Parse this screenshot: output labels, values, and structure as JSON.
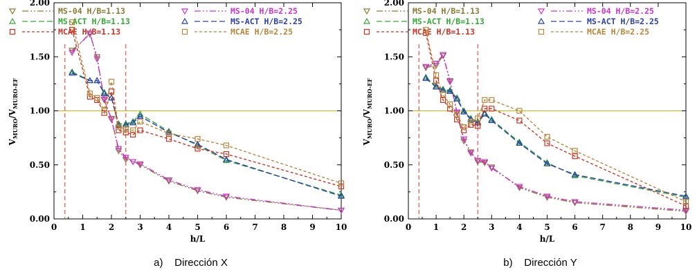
{
  "colors": {
    "ms04_113": "#8a7a33",
    "msact_113": "#33aa33",
    "mcae_113": "#cc3322",
    "ms04_225": "#cc33cc",
    "msact_225": "#2a3fb0",
    "mcae_225": "#b8863a",
    "ref": "#d4b000",
    "vline": "#e0443a"
  },
  "legend": [
    {
      "key": "ms04_113",
      "name": "MS-04",
      "hb": "H/B=1.13",
      "marker": "tri-down",
      "dash": "dashdot"
    },
    {
      "key": "msact_113",
      "name": "MS-ACT",
      "hb": "H/B=1.13",
      "marker": "tri-up",
      "dash": "dash"
    },
    {
      "key": "mcae_113",
      "name": "MCAE",
      "hb": "H/B=1.13",
      "marker": "square",
      "dash": "short"
    },
    {
      "key": "ms04_225",
      "name": "MS-04",
      "hb": "H/B=2.25",
      "marker": "tri-down",
      "dash": "dashdot"
    },
    {
      "key": "msact_225",
      "name": "MS-ACT",
      "hb": "H/B=2.25",
      "marker": "tri-up",
      "dash": "dash"
    },
    {
      "key": "mcae_225",
      "name": "MCAE",
      "hb": "H/B=2.25",
      "marker": "square",
      "dash": "short"
    }
  ],
  "chart_data": [
    {
      "type": "line",
      "caption": "a)    Dirección X",
      "xlabel": "h/L",
      "ylabel": "V",
      "ylabel_sub": "MURO",
      "ylabel_slash": "/V",
      "ylabel_sub2": "MURO-EF",
      "xlim": [
        0,
        10
      ],
      "ylim": [
        0,
        2
      ],
      "xticks": [
        "0",
        "1",
        "2",
        "3",
        "4",
        "5",
        "6",
        "7",
        "8",
        "9",
        "10"
      ],
      "yticks": [
        "0.00",
        "0.50",
        "1.00",
        "1.50",
        "2.00"
      ],
      "ref_y": 1.0,
      "vlines": [
        0.38,
        2.5
      ],
      "x": [
        0.63,
        1.25,
        1.5,
        1.75,
        2.0,
        2.25,
        2.5,
        2.75,
        3.0,
        4.0,
        5.0,
        6.0,
        10.0
      ],
      "series": [
        {
          "key": "ms04_113",
          "values": [
            1.56,
            1.71,
            1.5,
            1.1,
            0.93,
            0.63,
            0.55,
            0.53,
            0.5,
            0.35,
            0.26,
            0.2,
            0.08
          ]
        },
        {
          "key": "ms04_225",
          "values": [
            1.54,
            1.72,
            1.48,
            1.11,
            0.92,
            0.65,
            0.57,
            0.53,
            0.51,
            0.36,
            0.27,
            0.21,
            0.08
          ]
        },
        {
          "key": "msact_113",
          "values": [
            1.36,
            1.28,
            1.28,
            1.17,
            1.12,
            0.88,
            0.88,
            0.9,
            0.97,
            0.81,
            0.68,
            0.54,
            0.22
          ]
        },
        {
          "key": "msact_225",
          "values": [
            1.35,
            1.28,
            1.28,
            1.16,
            1.12,
            0.87,
            0.87,
            0.89,
            0.95,
            0.8,
            0.69,
            0.55,
            0.21
          ]
        },
        {
          "key": "mcae_113",
          "values": [
            1.75,
            1.13,
            1.1,
            0.98,
            1.18,
            0.82,
            0.8,
            0.78,
            0.82,
            0.74,
            0.65,
            0.6,
            0.3
          ]
        },
        {
          "key": "mcae_225",
          "values": [
            1.82,
            1.16,
            1.12,
            1.01,
            1.27,
            0.85,
            0.83,
            0.82,
            0.9,
            0.79,
            0.74,
            0.68,
            0.33
          ]
        }
      ]
    },
    {
      "type": "line",
      "caption": "b)    Dirección Y",
      "xlabel": "h/L",
      "ylabel": "V",
      "ylabel_sub": "MURO",
      "ylabel_slash": "/V",
      "ylabel_sub2": "MURO-EF",
      "xlim": [
        0,
        10
      ],
      "ylim": [
        0,
        2
      ],
      "xticks": [
        "0",
        "1",
        "2",
        "3",
        "4",
        "5",
        "6",
        "7",
        "8",
        "9",
        "10"
      ],
      "yticks": [
        "0.00",
        "0.50",
        "1.00",
        "1.50",
        "2.00"
      ],
      "ref_y": 1.0,
      "vlines": [
        0.38,
        2.5
      ],
      "x": [
        0.63,
        1.0,
        1.25,
        1.5,
        1.75,
        2.0,
        2.25,
        2.5,
        2.75,
        3.0,
        4.0,
        5.0,
        6.0,
        10.0
      ],
      "series": [
        {
          "key": "ms04_113",
          "values": [
            1.4,
            1.42,
            1.51,
            1.28,
            0.98,
            0.72,
            0.62,
            0.53,
            0.52,
            0.48,
            0.29,
            0.2,
            0.15,
            0.07
          ]
        },
        {
          "key": "ms04_225",
          "values": [
            1.41,
            1.44,
            1.52,
            1.27,
            0.99,
            0.74,
            0.61,
            0.54,
            0.53,
            0.47,
            0.3,
            0.21,
            0.16,
            0.08
          ]
        },
        {
          "key": "msact_113",
          "values": [
            1.31,
            1.23,
            1.2,
            1.19,
            1.12,
            1.0,
            0.93,
            0.9,
            0.98,
            0.92,
            0.71,
            0.52,
            0.4,
            0.2
          ]
        },
        {
          "key": "msact_225",
          "values": [
            1.3,
            1.22,
            1.19,
            1.18,
            1.11,
            0.99,
            0.92,
            0.89,
            0.97,
            0.91,
            0.7,
            0.51,
            0.41,
            0.21
          ]
        },
        {
          "key": "mcae_113",
          "values": [
            1.72,
            1.28,
            1.1,
            1.02,
            0.92,
            0.82,
            0.87,
            0.86,
            1.02,
            1.02,
            0.91,
            0.7,
            0.58,
            0.12
          ]
        },
        {
          "key": "mcae_225",
          "values": [
            1.75,
            1.33,
            1.15,
            1.06,
            0.96,
            0.85,
            0.9,
            0.93,
            1.1,
            1.1,
            1.0,
            0.76,
            0.63,
            0.16
          ]
        }
      ]
    }
  ]
}
